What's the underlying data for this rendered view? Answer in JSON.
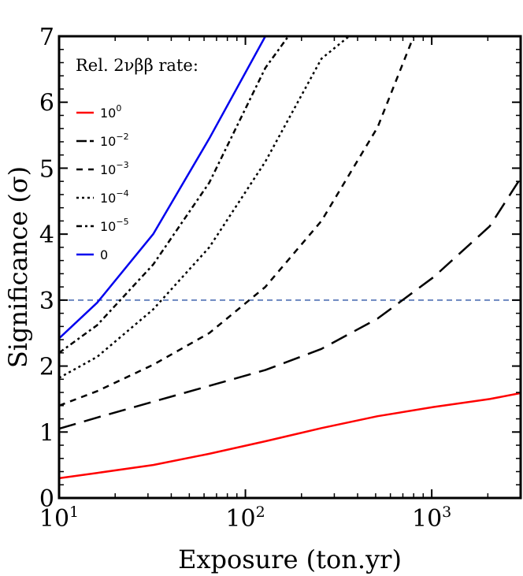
{
  "chart_data": {
    "type": "line",
    "xlabel": "Exposure (ton.yr)",
    "ylabel": "Significance (σ)",
    "x_scale": "log",
    "xlim": [
      10,
      3000
    ],
    "ylim": [
      0,
      7
    ],
    "x_ticks": [
      {
        "value": 10,
        "base": "10",
        "exp": "1"
      },
      {
        "value": 100,
        "base": "10",
        "exp": "2"
      },
      {
        "value": 1000,
        "base": "10",
        "exp": "3"
      }
    ],
    "y_ticks": [
      {
        "value": 0,
        "label": "0"
      },
      {
        "value": 1,
        "label": "1"
      },
      {
        "value": 2,
        "label": "2"
      },
      {
        "value": 3,
        "label": "3"
      },
      {
        "value": 4,
        "label": "4"
      },
      {
        "value": 5,
        "label": "5"
      },
      {
        "value": 6,
        "label": "6"
      },
      {
        "value": 7,
        "label": "7"
      }
    ],
    "legend_title": "Rel. 2νββ rate:",
    "legend_position": "top-left",
    "threshold": {
      "y": 3,
      "color": "#6a86c0"
    },
    "series": [
      {
        "name_base": "10",
        "name_exp": "0",
        "color": "#ff0000",
        "dash": "solid",
        "x": [
          10,
          16,
          32,
          64,
          128,
          256,
          512,
          1024,
          2048,
          3000
        ],
        "y": [
          0.3,
          0.38,
          0.5,
          0.67,
          0.86,
          1.06,
          1.24,
          1.38,
          1.5,
          1.59
        ]
      },
      {
        "name_base": "10",
        "name_exp": "−2",
        "color": "#000000",
        "dash": "long",
        "x": [
          10,
          16,
          32,
          64,
          128,
          256,
          512,
          1024,
          2048,
          3000
        ],
        "y": [
          1.05,
          1.22,
          1.46,
          1.7,
          1.94,
          2.26,
          2.72,
          3.35,
          4.12,
          4.85
        ]
      },
      {
        "name_base": "10",
        "name_exp": "−3",
        "color": "#000000",
        "dash": "medium",
        "x": [
          10,
          16,
          32,
          64,
          128,
          256,
          512,
          800
        ],
        "y": [
          1.4,
          1.62,
          2.02,
          2.5,
          3.2,
          4.2,
          5.62,
          7.0
        ]
      },
      {
        "name_base": "10",
        "name_exp": "−4",
        "color": "#000000",
        "dash": "dotted",
        "x": [
          10,
          16,
          32,
          64,
          128,
          256,
          360
        ],
        "y": [
          1.82,
          2.14,
          2.86,
          3.8,
          5.1,
          6.66,
          7.0
        ]
      },
      {
        "name_base": "10",
        "name_exp": "−5",
        "color": "#000000",
        "dash": "dashdot",
        "x": [
          10,
          16,
          32,
          64,
          128,
          170
        ],
        "y": [
          2.2,
          2.62,
          3.54,
          4.78,
          6.52,
          7.0
        ]
      },
      {
        "name_base": "0",
        "name_exp": "",
        "color": "#0000ee",
        "dash": "solid",
        "x": [
          10,
          16,
          32,
          64,
          128
        ],
        "y": [
          2.42,
          2.96,
          4.0,
          5.45,
          7.0
        ]
      }
    ]
  }
}
